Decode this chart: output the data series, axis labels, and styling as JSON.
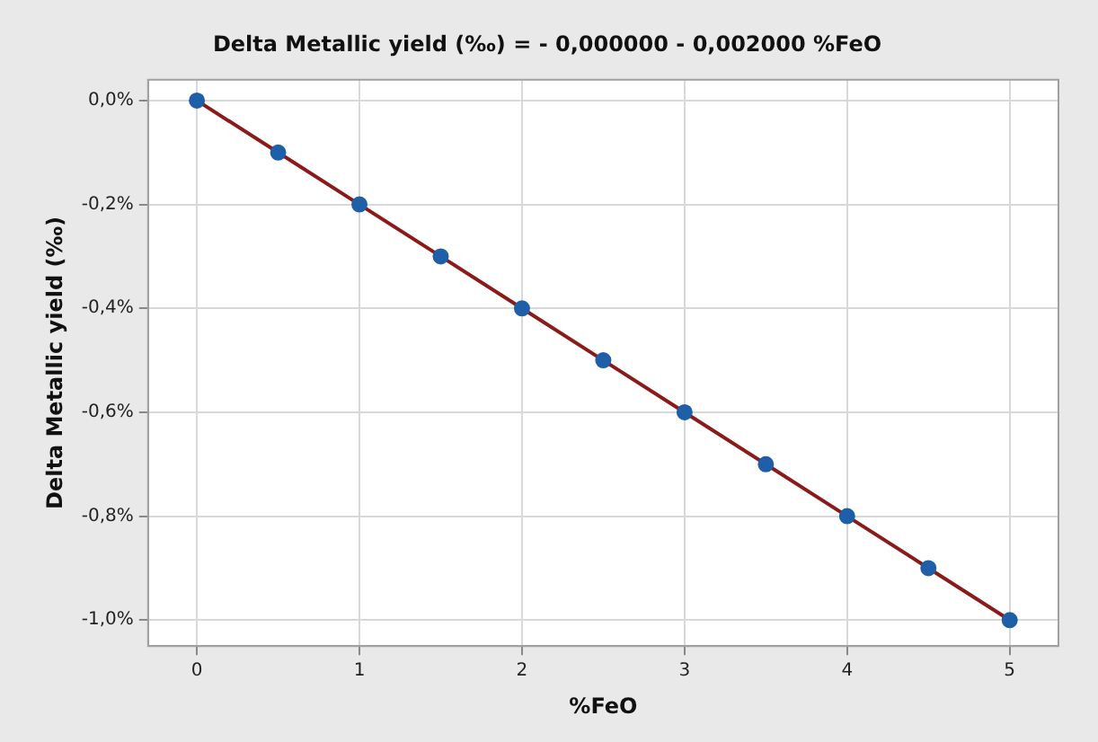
{
  "chart_data": {
    "type": "scatter",
    "title": "Delta Metallic yield (‰) = - 0,000000 - 0,002000 %FeO",
    "xlabel": "%FeO",
    "ylabel": "Delta Metallic yield (‰)",
    "x": [
      0,
      0.5,
      1,
      1.5,
      2,
      2.5,
      3,
      3.5,
      4,
      4.5,
      5
    ],
    "series": [
      {
        "type": "line",
        "color": "#8b1a1a",
        "marker": "none",
        "line_style": "solid",
        "values": [
          0,
          -0.1,
          -0.2,
          -0.3,
          -0.4,
          -0.5,
          -0.6,
          -0.7,
          -0.8,
          -0.9,
          -1.0
        ]
      },
      {
        "type": "scatter",
        "color": "#1f5fa8",
        "marker": "circle",
        "values": [
          0,
          -0.1,
          -0.2,
          -0.3,
          -0.4,
          -0.5,
          -0.6,
          -0.7,
          -0.8,
          -0.9,
          -1.0
        ]
      }
    ],
    "xlim": [
      -0.3,
      5.3
    ],
    "ylim": [
      -1.05,
      0.04
    ],
    "xticks": [
      0,
      1,
      2,
      3,
      4,
      5
    ],
    "yticks": [
      {
        "value": 0,
        "label": "0,0%"
      },
      {
        "value": -0.2,
        "label": "-0,2%"
      },
      {
        "value": -0.4,
        "label": "-0,4%"
      },
      {
        "value": -0.6,
        "label": "-0,6%"
      },
      {
        "value": -0.8,
        "label": "-0,8%"
      },
      {
        "value": -1.0,
        "label": "-1,0%"
      }
    ],
    "grid": true,
    "legend": false
  }
}
